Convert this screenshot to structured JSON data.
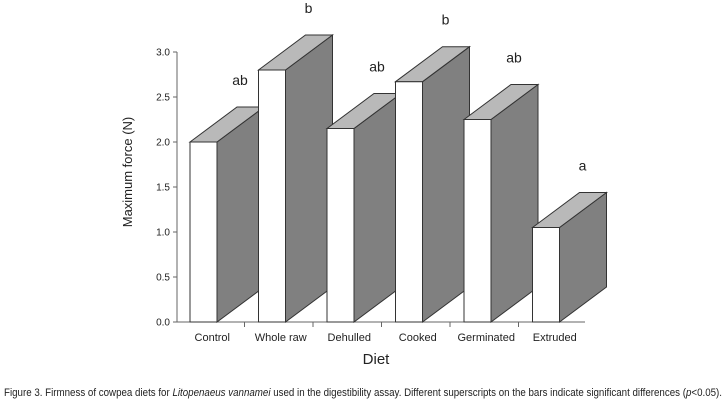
{
  "chart_data": {
    "type": "bar3d",
    "y_label": "Maximum force (N)",
    "x_label": "Diet",
    "categories": [
      "Control",
      "Whole raw",
      "Dehulled",
      "Cooked",
      "Germinated",
      "Extruded"
    ],
    "values": [
      2.0,
      2.8,
      2.15,
      2.67,
      2.25,
      1.05
    ],
    "annotations": [
      "ab",
      "b",
      "ab",
      "b",
      "ab",
      "a"
    ],
    "colors": {
      "front": "#ffffff",
      "top": "#b9b9b9",
      "side": "#808080"
    },
    "ylim": [
      0,
      3
    ],
    "yticks": [
      {
        "value": 0,
        "label": "0.0"
      },
      {
        "value": 0.5,
        "label": "0.5"
      },
      {
        "value": 1,
        "label": "1.0"
      },
      {
        "value": 1.5,
        "label": "1.5"
      },
      {
        "value": 2,
        "label": "2.0"
      },
      {
        "value": 2.5,
        "label": "2.5"
      },
      {
        "value": 3,
        "label": "3.0"
      }
    ],
    "caption": [
      "Figure 3. Firmness of cowpea diets for ",
      "Litopenaeus vannamei",
      " used in the digestibility assay. Different superscripts on the bars indicate significant differences (",
      "p",
      "<0.05)."
    ]
  }
}
